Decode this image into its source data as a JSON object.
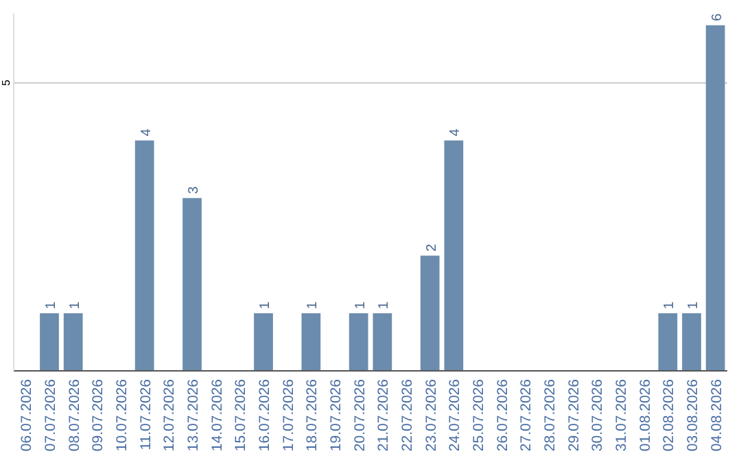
{
  "chart_data": {
    "type": "bar",
    "categories": [
      "06.07.2026",
      "07.07.2026",
      "08.07.2026",
      "09.07.2026",
      "10.07.2026",
      "11.07.2026",
      "12.07.2026",
      "13.07.2026",
      "14.07.2026",
      "15.07.2026",
      "16.07.2026",
      "17.07.2026",
      "18.07.2026",
      "19.07.2026",
      "20.07.2026",
      "21.07.2026",
      "22.07.2026",
      "23.07.2026",
      "24.07.2026",
      "25.07.2026",
      "26.07.2026",
      "27.07.2026",
      "28.07.2026",
      "29.07.2026",
      "30.07.2026",
      "31.07.2026",
      "01.08.2026",
      "02.08.2026",
      "03.08.2026",
      "04.08.2026"
    ],
    "values": [
      0,
      1,
      1,
      0,
      0,
      4,
      0,
      3,
      0,
      0,
      1,
      0,
      1,
      0,
      1,
      1,
      0,
      2,
      4,
      0,
      0,
      0,
      0,
      0,
      0,
      0,
      0,
      1,
      1,
      6
    ],
    "value_labels": [
      null,
      "1",
      "1",
      null,
      null,
      "4",
      null,
      "3",
      null,
      null,
      "1",
      null,
      "1",
      null,
      "1",
      "1",
      null,
      "2",
      "4",
      null,
      null,
      null,
      null,
      null,
      null,
      null,
      null,
      "1",
      "1",
      "6"
    ],
    "color": "#6b8cad",
    "ylim": [
      0,
      6.2
    ],
    "yticks": [
      5
    ],
    "grid": "y"
  }
}
